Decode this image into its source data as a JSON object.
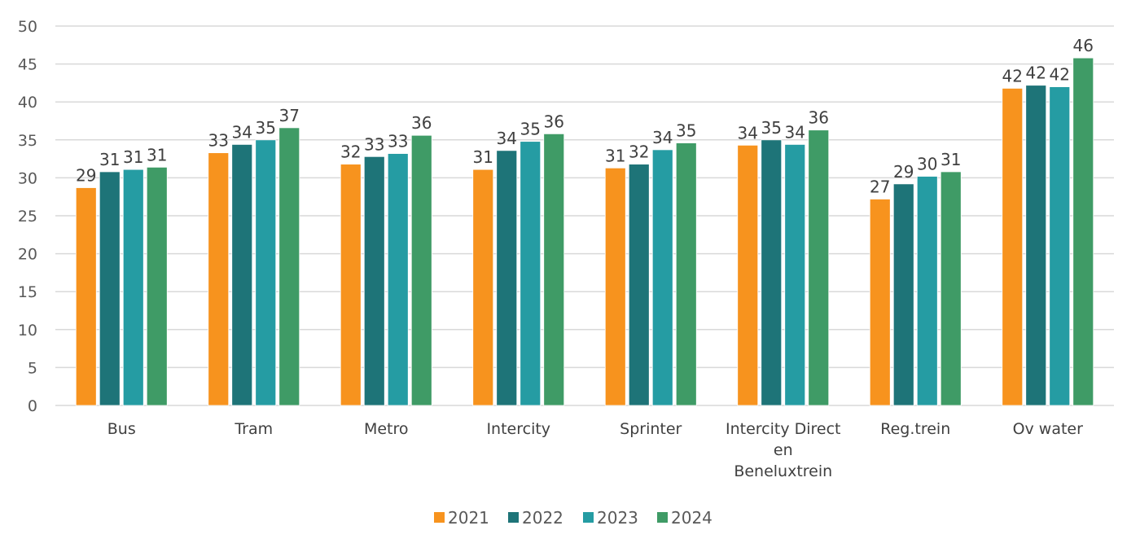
{
  "chart_data": {
    "type": "bar",
    "title": "",
    "xlabel": "",
    "ylabel": "",
    "ylim": [
      0,
      50
    ],
    "yticks": [
      0,
      5,
      10,
      15,
      20,
      25,
      30,
      35,
      40,
      45,
      50
    ],
    "grid": true,
    "legend_position": "bottom",
    "categories": [
      [
        "Bus"
      ],
      [
        "Tram"
      ],
      [
        "Metro"
      ],
      [
        "Intercity"
      ],
      [
        "Sprinter"
      ],
      [
        "Intercity Direct",
        "en",
        "Beneluxtrein"
      ],
      [
        "Reg.trein"
      ],
      [
        "Ov water"
      ]
    ],
    "series": [
      {
        "name": "2021",
        "color": "#f7931e",
        "values": [
          28.7,
          33.3,
          31.8,
          31.1,
          31.3,
          34.3,
          27.2,
          41.8
        ]
      },
      {
        "name": "2022",
        "color": "#1e7478",
        "values": [
          30.8,
          34.4,
          32.8,
          33.6,
          31.8,
          35.0,
          29.2,
          42.2
        ]
      },
      {
        "name": "2023",
        "color": "#259ca3",
        "values": [
          31.1,
          35.0,
          33.2,
          34.8,
          33.7,
          34.4,
          30.2,
          42.0
        ]
      },
      {
        "name": "2024",
        "color": "#3f9b66",
        "values": [
          31.4,
          36.6,
          35.6,
          35.8,
          34.6,
          36.3,
          30.8,
          45.8
        ]
      }
    ],
    "data_labels": [
      [
        29,
        33,
        32,
        31,
        31,
        34,
        27,
        42
      ],
      [
        31,
        34,
        33,
        34,
        32,
        35,
        29,
        42
      ],
      [
        31,
        35,
        33,
        35,
        34,
        34,
        30,
        42
      ],
      [
        31,
        37,
        36,
        36,
        35,
        36,
        31,
        46
      ]
    ]
  }
}
